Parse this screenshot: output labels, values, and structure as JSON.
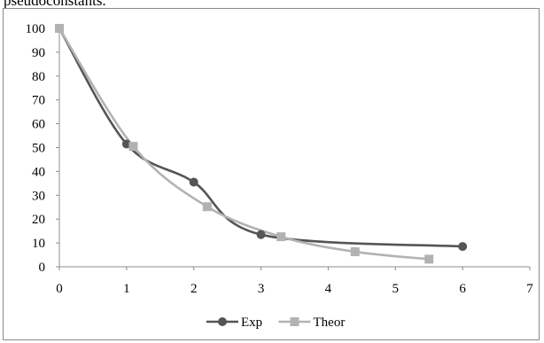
{
  "caption": {
    "text": "pseudoconstants."
  },
  "chart_data": {
    "type": "line",
    "title": "",
    "xlabel": "",
    "ylabel": "",
    "xlim": [
      0,
      7
    ],
    "ylim": [
      0,
      100
    ],
    "x_ticks": [
      0,
      1,
      2,
      3,
      4,
      5,
      6,
      7
    ],
    "y_ticks": [
      0,
      10,
      20,
      30,
      40,
      50,
      60,
      70,
      80,
      90,
      100
    ],
    "grid": false,
    "legend_position": "bottom",
    "series": [
      {
        "name": "Exp",
        "marker": "circle",
        "color": "#555555",
        "x": [
          0,
          1,
          2,
          3,
          6
        ],
        "y": [
          100,
          51.5,
          35.5,
          13.5,
          8.5
        ]
      },
      {
        "name": "Theor",
        "marker": "square",
        "color": "#b2b2b2",
        "x": [
          0,
          1.1,
          2.2,
          3.3,
          4.4,
          5.5
        ],
        "y": [
          100,
          50.5,
          25.2,
          12.6,
          6.3,
          3.2
        ]
      }
    ]
  }
}
